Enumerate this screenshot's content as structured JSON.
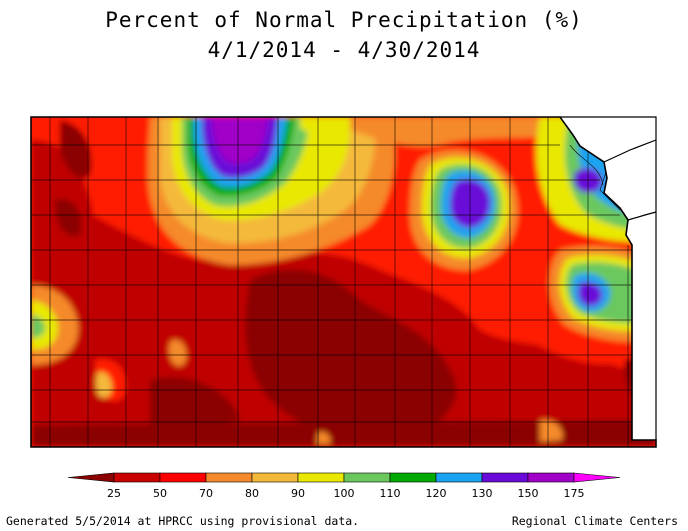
{
  "header": {
    "title": "Percent of Normal Precipitation (%)",
    "subtitle": "4/1/2014 - 4/30/2014"
  },
  "legend": {
    "ticks": [
      "25",
      "50",
      "70",
      "80",
      "90",
      "100",
      "110",
      "120",
      "130",
      "150",
      "175"
    ],
    "colors": [
      "#8b0000",
      "#c80000",
      "#ff0000",
      "#f58a2c",
      "#f4b93a",
      "#e8e800",
      "#6ac85e",
      "#00aa00",
      "#1aa3f0",
      "#6a0ad8",
      "#a000c8",
      "#ff00ff"
    ]
  },
  "map": {
    "colors": {
      "lt25": "#8b0000",
      "25_50": "#c00000",
      "50_70": "#ff1a00",
      "70_80": "#f58a2c",
      "80_90": "#f4b93a",
      "90_100": "#e8e800",
      "100_110": "#6ac85e",
      "110_120": "#00aa00",
      "120_130": "#1aa3f0",
      "130_150": "#6a0ad8",
      "150_175": "#a000c8"
    }
  },
  "footer": {
    "left": "Generated 5/5/2014 at HPRCC using provisional data.",
    "right": "Regional Climate Centers"
  }
}
